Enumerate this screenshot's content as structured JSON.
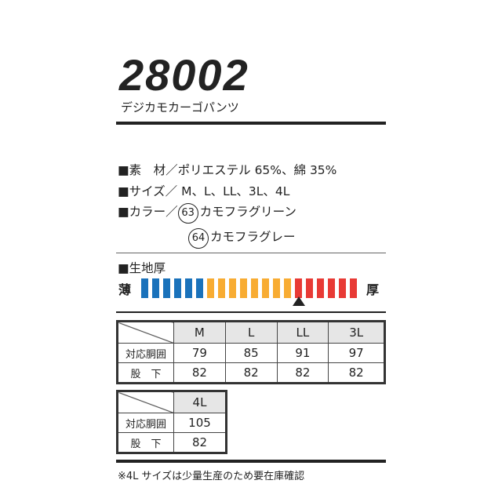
{
  "product": {
    "code": "28002",
    "name": "デジカモカーゴパンツ"
  },
  "specs": {
    "material": "■素　材／ポリエステル 65%、綿 35%",
    "sizes": "■サイズ／ M、L、LL、3L、4L",
    "color_label": "■カラー／",
    "colors": [
      {
        "num": "63",
        "name": "カモフラグリーン"
      },
      {
        "num": "64",
        "name": "カモフラグレー"
      }
    ]
  },
  "thickness": {
    "label": "■生地厚",
    "thin": "薄",
    "thick": "厚",
    "level": 15,
    "total": 20,
    "segments": [
      {
        "color": "#1a72bb",
        "count": 6
      },
      {
        "color": "#f8ac32",
        "count": 8
      },
      {
        "color": "#e83a35",
        "count": 6
      }
    ]
  },
  "table1": {
    "headers": [
      "M",
      "L",
      "LL",
      "3L"
    ],
    "rows": [
      {
        "label": "対応胴囲",
        "values": [
          "79",
          "85",
          "91",
          "97"
        ]
      },
      {
        "label": "股　下",
        "values": [
          "82",
          "82",
          "82",
          "82"
        ]
      }
    ]
  },
  "table2": {
    "headers": [
      "4L"
    ],
    "rows": [
      {
        "label": "対応胴囲",
        "values": [
          "105"
        ]
      },
      {
        "label": "股　下",
        "values": [
          "82"
        ]
      }
    ]
  },
  "note": "※4L サイズは少量生産のため要在庫確認"
}
